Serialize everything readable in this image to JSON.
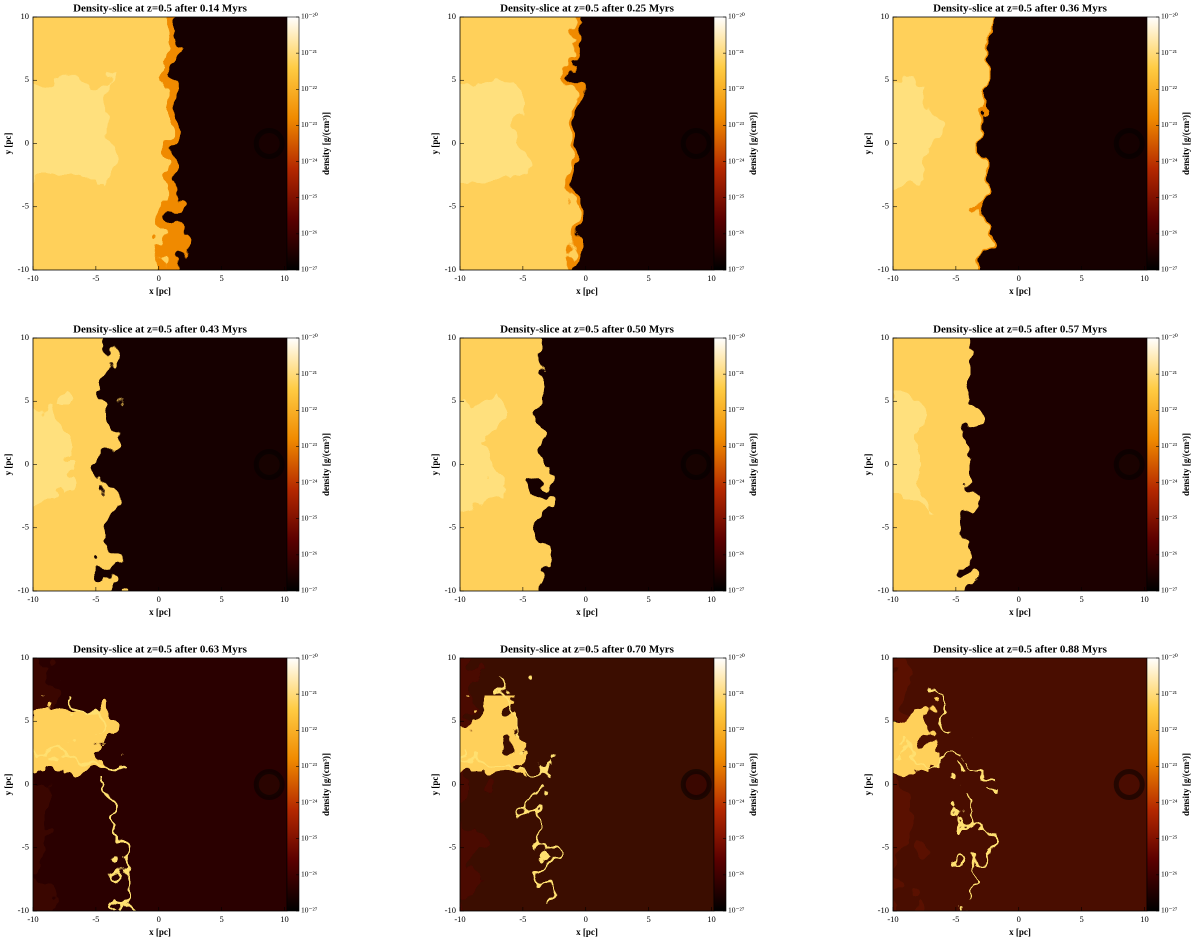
{
  "chart_data": [
    {
      "type": "image",
      "title": "Density-slice at z=0.5 after 0.14 Myrs",
      "xlabel": "x [pc]",
      "ylabel": "y [pc]",
      "xlim": [
        -10,
        10.2
      ],
      "ylim": [
        -10,
        10
      ],
      "xticks": [
        -10,
        -5,
        0,
        5,
        10
      ],
      "yticks": [
        -10,
        -5,
        0,
        5,
        10
      ],
      "colorbar_label": "density [g/(cm³)]",
      "clim": [
        1e-27,
        1e-20
      ],
      "cscale": "log",
      "cticks": [
        {
          "value": 1e-20,
          "label": "10⁻²⁰"
        },
        {
          "value": 1e-21,
          "label": "10⁻²¹"
        },
        {
          "value": 1e-22,
          "label": "10⁻²²"
        },
        {
          "value": 1e-23,
          "label": "10⁻²³"
        },
        {
          "value": 1e-24,
          "label": "10⁻²⁴"
        },
        {
          "value": 1e-25,
          "label": "10⁻²⁵"
        },
        {
          "value": 1e-26,
          "label": "10⁻²⁶"
        },
        {
          "value": 1e-27,
          "label": "10⁻²⁷"
        }
      ],
      "colormap": [
        "#000000",
        "#5a0000",
        "#b42800",
        "#f08a00",
        "#ffcc44",
        "#ffffff"
      ]
    },
    {
      "type": "image",
      "title": "Density-slice at z=0.5 after 0.25 Myrs",
      "xlabel": "x [pc]",
      "ylabel": "y [pc]",
      "xlim": [
        -10,
        10.2
      ],
      "ylim": [
        -10,
        10
      ],
      "xticks": [
        -10,
        -5,
        0,
        5,
        10
      ],
      "yticks": [
        -10,
        -5,
        0,
        5,
        10
      ],
      "colorbar_label": "density [g/(cm³)]",
      "clim": [
        1e-27,
        1e-20
      ],
      "cscale": "log",
      "cticks": [
        {
          "value": 1e-20,
          "label": "10⁻²⁰"
        },
        {
          "value": 1e-21,
          "label": "10⁻²¹"
        },
        {
          "value": 1e-22,
          "label": "10⁻²²"
        },
        {
          "value": 1e-23,
          "label": "10⁻²³"
        },
        {
          "value": 1e-24,
          "label": "10⁻²⁴"
        },
        {
          "value": 1e-25,
          "label": "10⁻²⁵"
        },
        {
          "value": 1e-26,
          "label": "10⁻²⁶"
        },
        {
          "value": 1e-27,
          "label": "10⁻²⁷"
        }
      ],
      "colormap": [
        "#000000",
        "#5a0000",
        "#b42800",
        "#f08a00",
        "#ffcc44",
        "#ffffff"
      ]
    },
    {
      "type": "image",
      "title": "Density-slice at z=0.5 after 0.36 Myrs",
      "xlabel": "x [pc]",
      "ylabel": "y [pc]",
      "xlim": [
        -10,
        10.2
      ],
      "ylim": [
        -10,
        10
      ],
      "xticks": [
        -10,
        -5,
        0,
        5,
        10
      ],
      "yticks": [
        -10,
        -5,
        0,
        5,
        10
      ],
      "colorbar_label": "density [g/(cm³)]",
      "clim": [
        1e-27,
        1e-20
      ],
      "cscale": "log",
      "cticks": [
        {
          "value": 1e-20,
          "label": "10⁻²⁰"
        },
        {
          "value": 1e-21,
          "label": "10⁻²¹"
        },
        {
          "value": 1e-22,
          "label": "10⁻²²"
        },
        {
          "value": 1e-23,
          "label": "10⁻²³"
        },
        {
          "value": 1e-24,
          "label": "10⁻²⁴"
        },
        {
          "value": 1e-25,
          "label": "10⁻²⁵"
        },
        {
          "value": 1e-26,
          "label": "10⁻²⁶"
        },
        {
          "value": 1e-27,
          "label": "10⁻²⁷"
        }
      ],
      "colormap": [
        "#000000",
        "#5a0000",
        "#b42800",
        "#f08a00",
        "#ffcc44",
        "#ffffff"
      ]
    },
    {
      "type": "image",
      "title": "Density-slice at z=0.5 after 0.43 Myrs",
      "xlabel": "x [pc]",
      "ylabel": "y [pc]",
      "xlim": [
        -10,
        10.2
      ],
      "ylim": [
        -10,
        10
      ],
      "xticks": [
        -10,
        -5,
        0,
        5,
        10
      ],
      "yticks": [
        -10,
        -5,
        0,
        5,
        10
      ],
      "colorbar_label": "density [g/(cm³)]",
      "clim": [
        1e-27,
        1e-20
      ],
      "cscale": "log",
      "cticks": [
        {
          "value": 1e-20,
          "label": "10⁻²⁰"
        },
        {
          "value": 1e-21,
          "label": "10⁻²¹"
        },
        {
          "value": 1e-22,
          "label": "10⁻²²"
        },
        {
          "value": 1e-23,
          "label": "10⁻²³"
        },
        {
          "value": 1e-24,
          "label": "10⁻²⁴"
        },
        {
          "value": 1e-25,
          "label": "10⁻²⁵"
        },
        {
          "value": 1e-26,
          "label": "10⁻²⁶"
        },
        {
          "value": 1e-27,
          "label": "10⁻²⁷"
        }
      ],
      "colormap": [
        "#000000",
        "#5a0000",
        "#b42800",
        "#f08a00",
        "#ffcc44",
        "#ffffff"
      ]
    },
    {
      "type": "image",
      "title": "Density-slice at z=0.5 after 0.50 Myrs",
      "xlabel": "x [pc]",
      "ylabel": "y [pc]",
      "xlim": [
        -10,
        10.2
      ],
      "ylim": [
        -10,
        10
      ],
      "xticks": [
        -10,
        -5,
        0,
        5,
        10
      ],
      "yticks": [
        -10,
        -5,
        0,
        5,
        10
      ],
      "colorbar_label": "density [g/(cm³)]",
      "clim": [
        1e-27,
        1e-20
      ],
      "cscale": "log",
      "cticks": [
        {
          "value": 1e-20,
          "label": "10⁻²⁰"
        },
        {
          "value": 1e-21,
          "label": "10⁻²¹"
        },
        {
          "value": 1e-22,
          "label": "10⁻²²"
        },
        {
          "value": 1e-23,
          "label": "10⁻²³"
        },
        {
          "value": 1e-24,
          "label": "10⁻²⁴"
        },
        {
          "value": 1e-25,
          "label": "10⁻²⁵"
        },
        {
          "value": 1e-26,
          "label": "10⁻²⁶"
        },
        {
          "value": 1e-27,
          "label": "10⁻²⁷"
        }
      ],
      "colormap": [
        "#000000",
        "#5a0000",
        "#b42800",
        "#f08a00",
        "#ffcc44",
        "#ffffff"
      ]
    },
    {
      "type": "image",
      "title": "Density-slice at z=0.5 after 0.57 Myrs",
      "xlabel": "x [pc]",
      "ylabel": "y [pc]",
      "xlim": [
        -10,
        10.2
      ],
      "ylim": [
        -10,
        10
      ],
      "xticks": [
        -10,
        -5,
        0,
        5,
        10
      ],
      "yticks": [
        -10,
        -5,
        0,
        5,
        10
      ],
      "colorbar_label": "density [g/(cm³)]",
      "clim": [
        1e-27,
        1e-20
      ],
      "cscale": "log",
      "cticks": [
        {
          "value": 1e-20,
          "label": "10⁻²⁰"
        },
        {
          "value": 1e-21,
          "label": "10⁻²¹"
        },
        {
          "value": 1e-22,
          "label": "10⁻²²"
        },
        {
          "value": 1e-23,
          "label": "10⁻²³"
        },
        {
          "value": 1e-24,
          "label": "10⁻²⁴"
        },
        {
          "value": 1e-25,
          "label": "10⁻²⁵"
        },
        {
          "value": 1e-26,
          "label": "10⁻²⁶"
        },
        {
          "value": 1e-27,
          "label": "10⁻²⁷"
        }
      ],
      "colormap": [
        "#000000",
        "#5a0000",
        "#b42800",
        "#f08a00",
        "#ffcc44",
        "#ffffff"
      ]
    },
    {
      "type": "image",
      "title": "Density-slice at z=0.5 after 0.63 Myrs",
      "xlabel": "x [pc]",
      "ylabel": "y [pc]",
      "xlim": [
        -10,
        10.2
      ],
      "ylim": [
        -10,
        10
      ],
      "xticks": [
        -10,
        -5,
        0,
        5,
        10
      ],
      "yticks": [
        -10,
        -5,
        0,
        5,
        10
      ],
      "colorbar_label": "density [g/(cm³)]",
      "clim": [
        1e-27,
        1e-20
      ],
      "cscale": "log",
      "cticks": [
        {
          "value": 1e-20,
          "label": "10⁻²⁰"
        },
        {
          "value": 1e-21,
          "label": "10⁻²¹"
        },
        {
          "value": 1e-22,
          "label": "10⁻²²"
        },
        {
          "value": 1e-23,
          "label": "10⁻²³"
        },
        {
          "value": 1e-24,
          "label": "10⁻²⁴"
        },
        {
          "value": 1e-25,
          "label": "10⁻²⁵"
        },
        {
          "value": 1e-26,
          "label": "10⁻²⁶"
        },
        {
          "value": 1e-27,
          "label": "10⁻²⁷"
        }
      ],
      "colormap": [
        "#000000",
        "#5a0000",
        "#b42800",
        "#f08a00",
        "#ffcc44",
        "#ffffff"
      ]
    },
    {
      "type": "image",
      "title": "Density-slice at z=0.5 after 0.70 Myrs",
      "xlabel": "x [pc]",
      "ylabel": "y [pc]",
      "xlim": [
        -10,
        10.2
      ],
      "ylim": [
        -10,
        10
      ],
      "xticks": [
        -10,
        -5,
        0,
        5,
        10
      ],
      "yticks": [
        -10,
        -5,
        0,
        5,
        10
      ],
      "colorbar_label": "density [g/(cm³)]",
      "clim": [
        1e-27,
        1e-20
      ],
      "cscale": "log",
      "cticks": [
        {
          "value": 1e-20,
          "label": "10⁻²⁰"
        },
        {
          "value": 1e-21,
          "label": "10⁻²¹"
        },
        {
          "value": 1e-22,
          "label": "10⁻²²"
        },
        {
          "value": 1e-23,
          "label": "10⁻²³"
        },
        {
          "value": 1e-24,
          "label": "10⁻²⁴"
        },
        {
          "value": 1e-25,
          "label": "10⁻²⁵"
        },
        {
          "value": 1e-26,
          "label": "10⁻²⁶"
        },
        {
          "value": 1e-27,
          "label": "10⁻²⁷"
        }
      ],
      "colormap": [
        "#000000",
        "#5a0000",
        "#b42800",
        "#f08a00",
        "#ffcc44",
        "#ffffff"
      ]
    },
    {
      "type": "image",
      "title": "Density-slice at z=0.5 after 0.88 Myrs",
      "xlabel": "x [pc]",
      "ylabel": "y [pc]",
      "xlim": [
        -10,
        10.2
      ],
      "ylim": [
        -10,
        10
      ],
      "xticks": [
        -10,
        -5,
        0,
        5,
        10
      ],
      "yticks": [
        -10,
        -5,
        0,
        5,
        10
      ],
      "colorbar_label": "density [g/(cm³)]",
      "clim": [
        1e-27,
        1e-20
      ],
      "cscale": "log",
      "cticks": [
        {
          "value": 1e-20,
          "label": "10⁻²⁰"
        },
        {
          "value": 1e-21,
          "label": "10⁻²¹"
        },
        {
          "value": 1e-22,
          "label": "10⁻²²"
        },
        {
          "value": 1e-23,
          "label": "10⁻²³"
        },
        {
          "value": 1e-24,
          "label": "10⁻²⁴"
        },
        {
          "value": 1e-25,
          "label": "10⁻²⁵"
        },
        {
          "value": 1e-26,
          "label": "10⁻²⁶"
        },
        {
          "value": 1e-27,
          "label": "10⁻²⁷"
        }
      ],
      "colormap": [
        "#000000",
        "#5a0000",
        "#b42800",
        "#f08a00",
        "#ffcc44",
        "#ffffff"
      ]
    }
  ]
}
